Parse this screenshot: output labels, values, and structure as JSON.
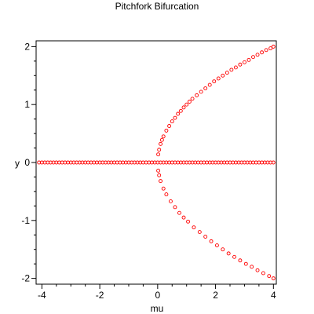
{
  "chart_data": {
    "type": "scatter",
    "title": "Pitchfork Bifurcation",
    "xlabel": "mu",
    "ylabel": "y",
    "xlim": [
      -4.2,
      4.1
    ],
    "ylim": [
      -2.1,
      2.1
    ],
    "xticks": [
      -4,
      -2,
      0,
      2,
      4
    ],
    "yticks": [
      -2,
      -1,
      0,
      1,
      2
    ],
    "grid": false,
    "marker": "open-circle",
    "marker_color": "#ff0000",
    "series": [
      {
        "points": [
          [
            -4.1,
            0
          ],
          [
            -4.0,
            0
          ],
          [
            -3.9,
            0
          ],
          [
            -3.8,
            0
          ],
          [
            -3.7,
            0
          ],
          [
            -3.6,
            0
          ],
          [
            -3.5,
            0
          ],
          [
            -3.4,
            0
          ],
          [
            -3.3,
            0
          ],
          [
            -3.2,
            0
          ],
          [
            -3.1,
            0
          ],
          [
            -3.0,
            0
          ],
          [
            -2.9,
            0
          ],
          [
            -2.8,
            0
          ],
          [
            -2.7,
            0
          ],
          [
            -2.6,
            0
          ],
          [
            -2.5,
            0
          ],
          [
            -2.4,
            0
          ],
          [
            -2.3,
            0
          ],
          [
            -2.2,
            0
          ],
          [
            -2.1,
            0
          ],
          [
            -2.0,
            0
          ],
          [
            -1.9,
            0
          ],
          [
            -1.8,
            0
          ],
          [
            -1.7,
            0
          ],
          [
            -1.6,
            0
          ],
          [
            -1.5,
            0
          ],
          [
            -1.4,
            0
          ],
          [
            -1.3,
            0
          ],
          [
            -1.2,
            0
          ],
          [
            -1.1,
            0
          ],
          [
            -1.0,
            0
          ],
          [
            -0.9,
            0
          ],
          [
            -0.8,
            0
          ],
          [
            -0.7,
            0
          ],
          [
            -0.6,
            0
          ],
          [
            -0.5,
            0
          ],
          [
            -0.4,
            0
          ],
          [
            -0.3,
            0
          ],
          [
            -0.2,
            0
          ],
          [
            -0.1,
            0
          ],
          [
            0.0,
            0
          ],
          [
            0.1,
            0
          ],
          [
            0.2,
            0
          ],
          [
            0.3,
            0
          ],
          [
            0.4,
            0
          ],
          [
            0.5,
            0
          ],
          [
            0.6,
            0
          ],
          [
            0.7,
            0
          ],
          [
            0.8,
            0
          ],
          [
            0.9,
            0
          ],
          [
            1.0,
            0
          ],
          [
            1.1,
            0
          ],
          [
            1.2,
            0
          ],
          [
            1.3,
            0
          ],
          [
            1.4,
            0
          ],
          [
            1.5,
            0
          ],
          [
            1.6,
            0
          ],
          [
            1.7,
            0
          ],
          [
            1.8,
            0
          ],
          [
            1.9,
            0
          ],
          [
            2.0,
            0
          ],
          [
            2.1,
            0
          ],
          [
            2.2,
            0
          ],
          [
            2.3,
            0
          ],
          [
            2.4,
            0
          ],
          [
            2.5,
            0
          ],
          [
            2.6,
            0
          ],
          [
            2.7,
            0
          ],
          [
            2.8,
            0
          ],
          [
            2.9,
            0
          ],
          [
            3.0,
            0
          ],
          [
            3.1,
            0
          ],
          [
            3.2,
            0
          ],
          [
            3.3,
            0
          ],
          [
            3.4,
            0
          ],
          [
            3.5,
            0
          ],
          [
            3.6,
            0
          ],
          [
            3.7,
            0
          ],
          [
            3.8,
            0
          ],
          [
            3.9,
            0
          ],
          [
            4.0,
            0
          ],
          [
            0.02,
            0.14
          ],
          [
            0.05,
            0.22
          ],
          [
            0.1,
            0.32
          ],
          [
            0.15,
            0.39
          ],
          [
            0.2,
            0.45
          ],
          [
            0.3,
            0.55
          ],
          [
            0.4,
            0.63
          ],
          [
            0.5,
            0.71
          ],
          [
            0.6,
            0.77
          ],
          [
            0.7,
            0.84
          ],
          [
            0.8,
            0.89
          ],
          [
            0.9,
            0.95
          ],
          [
            1.0,
            1.0
          ],
          [
            1.1,
            1.05
          ],
          [
            1.2,
            1.1
          ],
          [
            1.35,
            1.16
          ],
          [
            1.5,
            1.22
          ],
          [
            1.65,
            1.28
          ],
          [
            1.8,
            1.34
          ],
          [
            1.95,
            1.4
          ],
          [
            2.1,
            1.45
          ],
          [
            2.25,
            1.5
          ],
          [
            2.4,
            1.55
          ],
          [
            2.55,
            1.6
          ],
          [
            2.7,
            1.64
          ],
          [
            2.85,
            1.69
          ],
          [
            3.0,
            1.73
          ],
          [
            3.15,
            1.77
          ],
          [
            3.3,
            1.82
          ],
          [
            3.45,
            1.86
          ],
          [
            3.6,
            1.9
          ],
          [
            3.75,
            1.94
          ],
          [
            3.9,
            1.97
          ],
          [
            4.0,
            2.0
          ],
          [
            0.02,
            -0.14
          ],
          [
            0.05,
            -0.22
          ],
          [
            0.1,
            -0.32
          ],
          [
            0.2,
            -0.45
          ],
          [
            0.3,
            -0.55
          ],
          [
            0.45,
            -0.67
          ],
          [
            0.6,
            -0.77
          ],
          [
            0.75,
            -0.87
          ],
          [
            0.9,
            -0.95
          ],
          [
            1.05,
            -1.02
          ],
          [
            1.25,
            -1.12
          ],
          [
            1.45,
            -1.2
          ],
          [
            1.65,
            -1.28
          ],
          [
            1.85,
            -1.36
          ],
          [
            2.05,
            -1.43
          ],
          [
            2.25,
            -1.5
          ],
          [
            2.45,
            -1.57
          ],
          [
            2.65,
            -1.63
          ],
          [
            2.85,
            -1.69
          ],
          [
            3.05,
            -1.75
          ],
          [
            3.25,
            -1.8
          ],
          [
            3.45,
            -1.86
          ],
          [
            3.65,
            -1.91
          ],
          [
            3.85,
            -1.96
          ],
          [
            4.0,
            -2.0
          ]
        ]
      }
    ]
  }
}
